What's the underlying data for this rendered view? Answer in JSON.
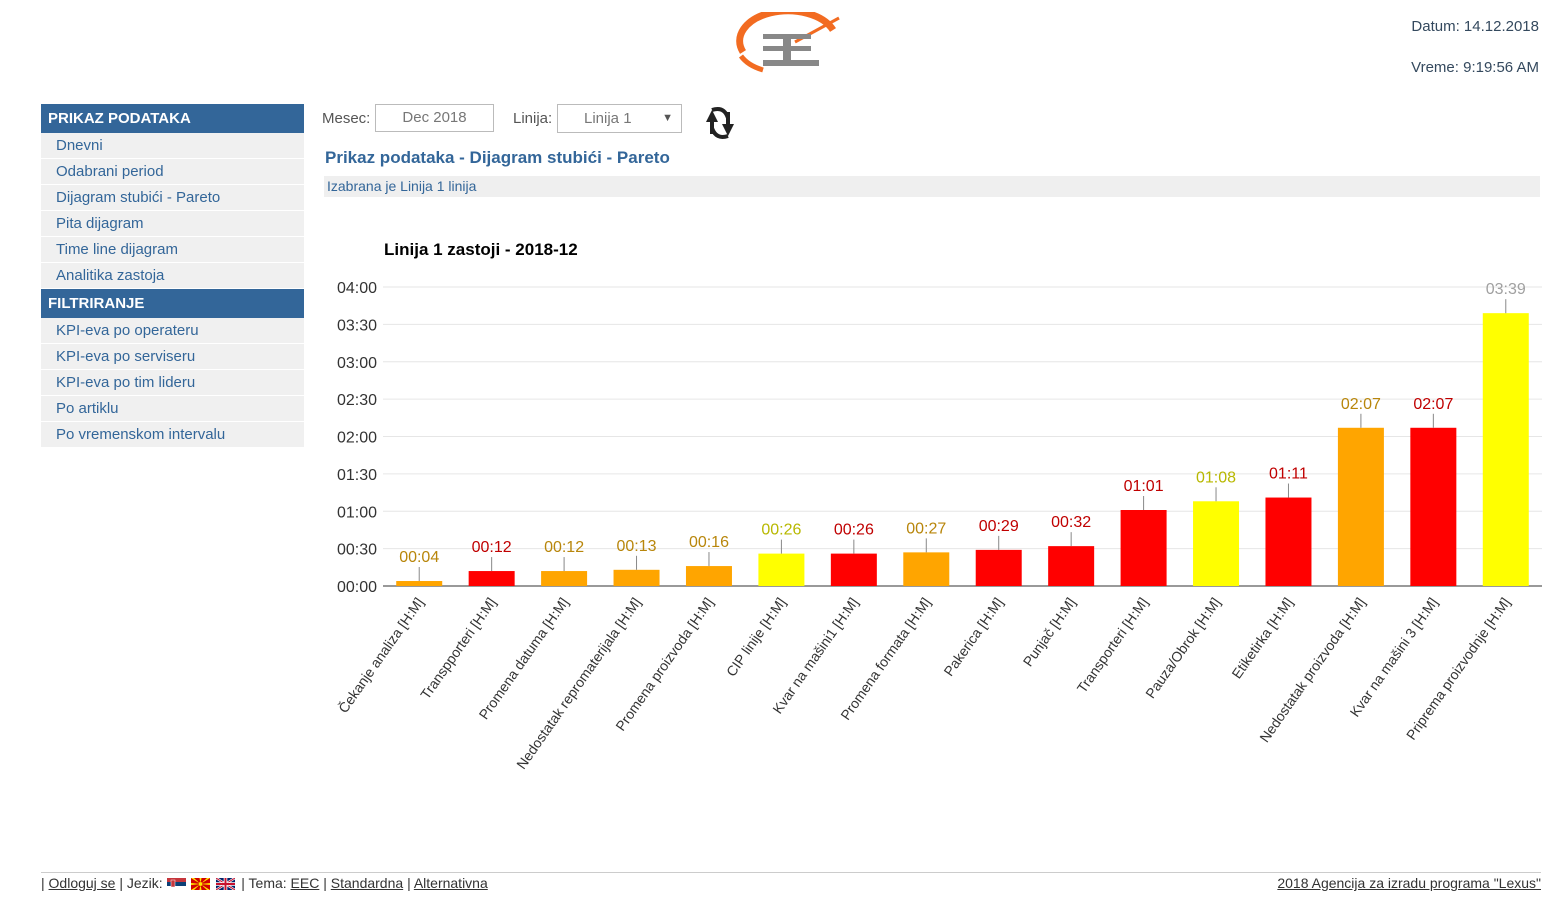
{
  "header": {
    "date_text": "Datum: 14.12.2018",
    "time_text": "Vreme: 9:19:56 AM",
    "logo_icon": "gauge-logo-icon"
  },
  "sidebar": {
    "sections": [
      {
        "title": "PRIKAZ PODATAKA",
        "items": [
          "Dnevni",
          "Odabrani period",
          "Dijagram stubići - Pareto",
          "Pita dijagram",
          "Time line dijagram",
          "Analitika zastoja"
        ]
      },
      {
        "title": "FILTRIRANJE",
        "items": [
          "KPI-eva po operateru",
          "KPI-eva po serviseru",
          "KPI-eva po tim lideru",
          "Po artiklu",
          "Po vremenskom intervalu"
        ]
      }
    ]
  },
  "filters": {
    "month_label": "Mesec:",
    "month_value": "Dec 2018",
    "line_label": "Linija:",
    "line_value": "Linija 1",
    "refresh_icon": "refresh-arrows-icon"
  },
  "main": {
    "title": "Prikaz podataka - Dijagram stubići - Pareto",
    "info": "Izabrana je Linija 1 linija"
  },
  "chart_data": {
    "type": "bar",
    "title": "Linija 1 zastoji - 2018-12",
    "xlabel": "",
    "ylabel": "",
    "ylim_minutes": [
      0,
      240
    ],
    "yticks": [
      "00:00",
      "00:30",
      "01:00",
      "01:30",
      "02:00",
      "02:30",
      "03:00",
      "03:30",
      "04:00"
    ],
    "grid": true,
    "categories": [
      "Čekanje analiza [H:M]",
      "Transpporteri [H:M]",
      "Promena datuma [H:M]",
      "Nedostatak repromaterijala [H:M]",
      "Promena proizvoda [H:M]",
      "CIP linije [H:M]",
      "Kvar na mašini1 [H:M]",
      "Promena formata [H:M]",
      "Pakerica [H:M]",
      "Punjač [H:M]",
      "Transporteri [H:M]",
      "Pauza/Obrok [H:M]",
      "Etiketirka [H:M]",
      "Nedostatak proizvoda [H:M]",
      "Kvar na mašini 3 [H:M]",
      "Priprema proizvodnje [H:M]"
    ],
    "values_minutes": [
      4,
      12,
      12,
      13,
      16,
      26,
      26,
      27,
      29,
      32,
      61,
      68,
      71,
      127,
      127,
      219
    ],
    "labels": [
      "00:04",
      "00:12",
      "00:12",
      "00:13",
      "00:16",
      "00:26",
      "00:26",
      "00:27",
      "00:29",
      "00:32",
      "01:01",
      "01:08",
      "01:11",
      "02:07",
      "02:07",
      "03:39"
    ],
    "colors": [
      "#ffa500",
      "#ff0000",
      "#ffa500",
      "#ffa500",
      "#ffa500",
      "#ffff00",
      "#ff0000",
      "#ffa500",
      "#ff0000",
      "#ff0000",
      "#ff0000",
      "#ffff00",
      "#ff0000",
      "#ffa500",
      "#ff0000",
      "#ffff00"
    ],
    "label_colors": [
      "#b8860b",
      "#c00000",
      "#b8860b",
      "#b8860b",
      "#b8860b",
      "#b8b800",
      "#c00000",
      "#b8860b",
      "#c00000",
      "#c00000",
      "#c00000",
      "#b8b800",
      "#c00000",
      "#b8860b",
      "#c00000",
      "#a0a0a0"
    ]
  },
  "footer": {
    "sep": "|",
    "logout": "Odloguj se",
    "language_label": "Jezik:",
    "theme_label": "Tema:",
    "themes": [
      "EEC",
      "Standardna",
      "Alternativna"
    ],
    "copyright": "2018 Agencija za izradu programa \"Lexus\""
  }
}
